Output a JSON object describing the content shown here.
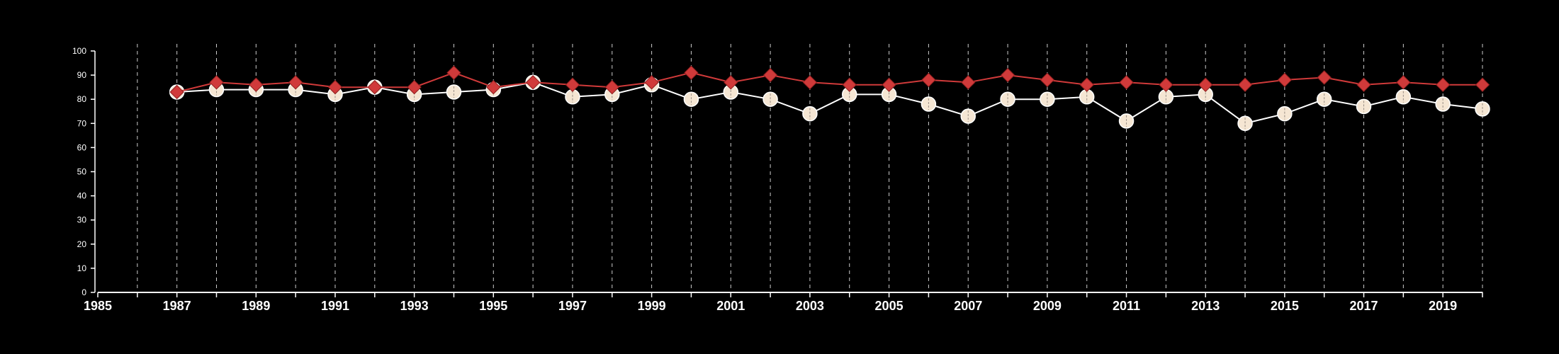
{
  "chart_data": {
    "type": "line",
    "title": "",
    "xlabel": "",
    "ylabel": "",
    "xlim": [
      1985,
      2020
    ],
    "ylim": [
      0,
      100
    ],
    "x_ticks": [
      1985,
      1987,
      1989,
      1991,
      1993,
      1995,
      1997,
      1999,
      2001,
      2003,
      2005,
      2007,
      2009,
      2011,
      2013,
      2015,
      2017,
      2019
    ],
    "y_ticks": [
      0,
      10,
      20,
      30,
      40,
      50,
      60,
      70,
      80,
      90,
      100
    ],
    "grid": "vertical dashed lines at each year",
    "legend": "none",
    "x": [
      1987,
      1988,
      1989,
      1990,
      1991,
      1992,
      1993,
      1994,
      1995,
      1996,
      1997,
      1998,
      1999,
      2000,
      2001,
      2002,
      2003,
      2004,
      2005,
      2006,
      2007,
      2008,
      2009,
      2010,
      2011,
      2012,
      2013,
      2014,
      2015,
      2016,
      2017,
      2018,
      2019,
      2020
    ],
    "series": [
      {
        "color": "#f5e6d3",
        "marker": "circle",
        "values": [
          83,
          84,
          84,
          84,
          82,
          85,
          82,
          83,
          84,
          87,
          81,
          82,
          86,
          80,
          83,
          80,
          74,
          82,
          82,
          78,
          73,
          80,
          80,
          81,
          71,
          81,
          82,
          70,
          74,
          80,
          77,
          81,
          78,
          76
        ]
      },
      {
        "color": "#d03a3a",
        "marker": "diamond",
        "values": [
          83,
          87,
          86,
          87,
          85,
          85,
          85,
          91,
          85,
          87,
          86,
          85,
          87,
          91,
          87,
          90,
          87,
          86,
          86,
          88,
          87,
          90,
          88,
          86,
          87,
          86,
          86,
          86,
          88,
          89,
          86,
          87,
          86,
          86
        ]
      }
    ]
  }
}
